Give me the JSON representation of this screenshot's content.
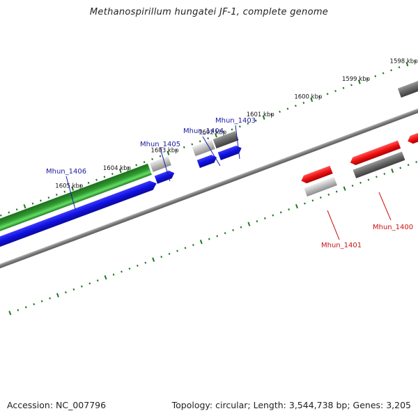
{
  "title": "Methanospirillum hungatei JF-1, complete genome",
  "footer": {
    "accession": "Accession: NC_007796",
    "stats": "Topology: circular; Length: 3,544,738 bp; Genes: 3,205"
  },
  "colors": {
    "backbone": "#808080",
    "tick": "#1a7a1a",
    "label_blue": "#1a1aa0",
    "label_red": "#cc1111",
    "green_track": "#33aa33",
    "blue_gene": "#1a1aee",
    "red_gene": "#ee1111",
    "gray_dark": "#666666",
    "gray_light": "#bbbbbb"
  },
  "kbp_labels": [
    "1598 kbp",
    "1599 kbp",
    "1600 kbp",
    "1601 kbp",
    "1602 kbp",
    "1603 kbp",
    "1604 kbp",
    "1605 kbp"
  ],
  "genes": {
    "blue": [
      "Mhun_1403",
      "Mhun_1404",
      "Mhun_1405",
      "Mhun_1406"
    ],
    "red": [
      "Mhun_1400",
      "Mhun_1401"
    ]
  }
}
